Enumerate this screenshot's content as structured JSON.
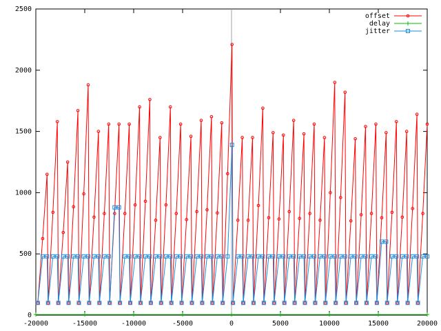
{
  "chart_data": {
    "type": "line",
    "x": [
      -19800,
      -19300,
      -18850,
      -18750,
      -18250,
      -17800,
      -17700,
      -17200,
      -16750,
      -16650,
      -16150,
      -15700,
      -15600,
      -15100,
      -14650,
      -14550,
      -14050,
      -13600,
      -13500,
      -13000,
      -12550,
      -12450,
      -11950,
      -11500,
      -11400,
      -10900,
      -10450,
      -10350,
      -9850,
      -9400,
      -9300,
      -8800,
      -8350,
      -8250,
      -7750,
      -7300,
      -7200,
      -6700,
      -6250,
      -6150,
      -5650,
      -5200,
      -5100,
      -4600,
      -4150,
      -4050,
      -3550,
      -3100,
      -3000,
      -2500,
      -2050,
      -1950,
      -1450,
      -1000,
      -900,
      -400,
      50,
      150,
      650,
      1100,
      1200,
      1700,
      2150,
      2250,
      2750,
      3200,
      3300,
      3800,
      4250,
      4350,
      4850,
      5300,
      5400,
      5900,
      6350,
      6450,
      6950,
      7400,
      7500,
      8000,
      8450,
      8550,
      9050,
      9500,
      9600,
      10100,
      10550,
      10650,
      11150,
      11600,
      11700,
      12200,
      12650,
      12750,
      13250,
      13700,
      13800,
      14300,
      14750,
      14850,
      15350,
      15800,
      15900,
      16400,
      16850,
      16950,
      17450,
      17900,
      18000,
      18500,
      18950,
      19050,
      19550,
      20000
    ],
    "series": [
      {
        "name": "offset",
        "color": "#ff0000",
        "marker": "circle",
        "values": [
          100,
          625,
          1150,
          100,
          840,
          1580,
          100,
          675,
          1250,
          100,
          885,
          1670,
          100,
          990,
          1880,
          100,
          800,
          1500,
          100,
          830,
          1560,
          100,
          830,
          1560,
          100,
          830,
          1560,
          100,
          900,
          1700,
          100,
          930,
          1760,
          100,
          775,
          1450,
          100,
          900,
          1700,
          100,
          830,
          1560,
          100,
          780,
          1460,
          100,
          845,
          1590,
          100,
          860,
          1620,
          100,
          835,
          1570,
          100,
          1155,
          2210,
          100,
          775,
          1450,
          100,
          775,
          1450,
          100,
          895,
          1690,
          100,
          795,
          1490,
          100,
          785,
          1470,
          100,
          845,
          1590,
          100,
          790,
          1480,
          100,
          830,
          1560,
          100,
          775,
          1450,
          100,
          1000,
          1900,
          100,
          960,
          1820,
          100,
          770,
          1440,
          100,
          820,
          1540,
          100,
          830,
          1560,
          100,
          795,
          1490,
          100,
          840,
          1580,
          100,
          800,
          1500,
          100,
          870,
          1640,
          100,
          830,
          1560
        ]
      },
      {
        "name": "delay",
        "color": "#00c000",
        "marker": "plus",
        "x": [
          -20000,
          -15000,
          -10000,
          -5000,
          0,
          5000,
          10000,
          15000,
          20000
        ],
        "values": [
          5,
          5,
          5,
          5,
          5,
          5,
          5,
          5,
          5
        ]
      },
      {
        "name": "jitter",
        "color": "#1a8ce0",
        "marker": "square",
        "values": [
          100,
          480,
          480,
          100,
          480,
          480,
          100,
          480,
          480,
          100,
          480,
          480,
          100,
          480,
          480,
          100,
          480,
          480,
          100,
          480,
          480,
          100,
          880,
          880,
          100,
          480,
          480,
          100,
          480,
          480,
          100,
          480,
          480,
          100,
          480,
          480,
          100,
          480,
          480,
          100,
          480,
          480,
          100,
          480,
          480,
          100,
          480,
          480,
          100,
          480,
          480,
          100,
          480,
          480,
          100,
          480,
          1390,
          100,
          480,
          480,
          100,
          480,
          480,
          100,
          480,
          480,
          100,
          480,
          480,
          100,
          480,
          480,
          100,
          480,
          480,
          100,
          480,
          480,
          100,
          480,
          480,
          100,
          480,
          480,
          100,
          480,
          480,
          100,
          480,
          480,
          100,
          480,
          480,
          100,
          480,
          480,
          100,
          480,
          480,
          100,
          600,
          600,
          100,
          480,
          480,
          100,
          480,
          480,
          100,
          480,
          480,
          100,
          480,
          480
        ]
      }
    ],
    "xlim": [
      -20000,
      20000
    ],
    "ylim": [
      0,
      2500
    ],
    "xticks": [
      -20000,
      -15000,
      -10000,
      -5000,
      0,
      5000,
      10000,
      15000,
      20000
    ],
    "yticks": [
      0,
      500,
      1000,
      1500,
      2000,
      2500
    ],
    "zeroaxis": true,
    "legend": "top-right"
  }
}
